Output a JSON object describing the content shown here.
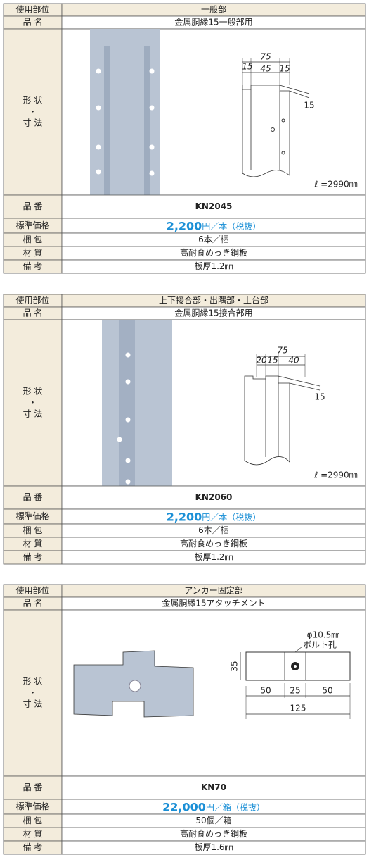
{
  "products": [
    {
      "usage": {
        "label": "使用部位",
        "value": "一般部"
      },
      "name": {
        "label": "品 名",
        "value": "金属胴縁15一般部用"
      },
      "shape": {
        "label": [
          "形 状",
          "・",
          "寸 法"
        ],
        "dims": [
          "75",
          "15",
          "45",
          "15",
          "15",
          "ℓ =2990㎜"
        ]
      },
      "code": {
        "label": "品 番",
        "value": "KN2045"
      },
      "price": {
        "label": "標準価格",
        "amount": "2,200",
        "unit": "円／本（税抜）"
      },
      "packing": {
        "label": "梱 包",
        "value": "6本／梱"
      },
      "material": {
        "label": "材 質",
        "value": "高耐食めっき鋼板"
      },
      "note": {
        "label": "備 考",
        "value": "板厚1.2㎜"
      }
    },
    {
      "usage": {
        "label": "使用部位",
        "value": "上下接合部・出隅部・土台部"
      },
      "name": {
        "label": "品 名",
        "value": "金属胴縁15接合部用"
      },
      "shape": {
        "label": [
          "形 状",
          "・",
          "寸 法"
        ],
        "dims": [
          "75",
          "20",
          "15",
          "40",
          "15",
          "ℓ =2990㎜"
        ]
      },
      "code": {
        "label": "品 番",
        "value": "KN2060"
      },
      "price": {
        "label": "標準価格",
        "amount": "2,200",
        "unit": "円／本（税抜）"
      },
      "packing": {
        "label": "梱 包",
        "value": "6本／梱"
      },
      "material": {
        "label": "材 質",
        "value": "高耐食めっき鋼板"
      },
      "note": {
        "label": "備 考",
        "value": "板厚1.2㎜"
      }
    },
    {
      "usage": {
        "label": "使用部位",
        "value": "アンカー固定部"
      },
      "name": {
        "label": "品 名",
        "value": "金属胴縁15アタッチメント"
      },
      "shape": {
        "label": [
          "形 状",
          "・",
          "寸 法"
        ],
        "dims": [
          "φ10.5㎜",
          "ボルト孔",
          "35",
          "50",
          "25",
          "50",
          "125"
        ]
      },
      "code": {
        "label": "品 番",
        "value": "KN70"
      },
      "price": {
        "label": "標準価格",
        "amount": "22,000",
        "unit": "円／箱（税抜）"
      },
      "packing": {
        "label": "梱 包",
        "value": "50個／箱"
      },
      "material": {
        "label": "材 質",
        "value": "高耐食めっき鋼板"
      },
      "note": {
        "label": "備 考",
        "value": "板厚1.6㎜"
      }
    }
  ]
}
